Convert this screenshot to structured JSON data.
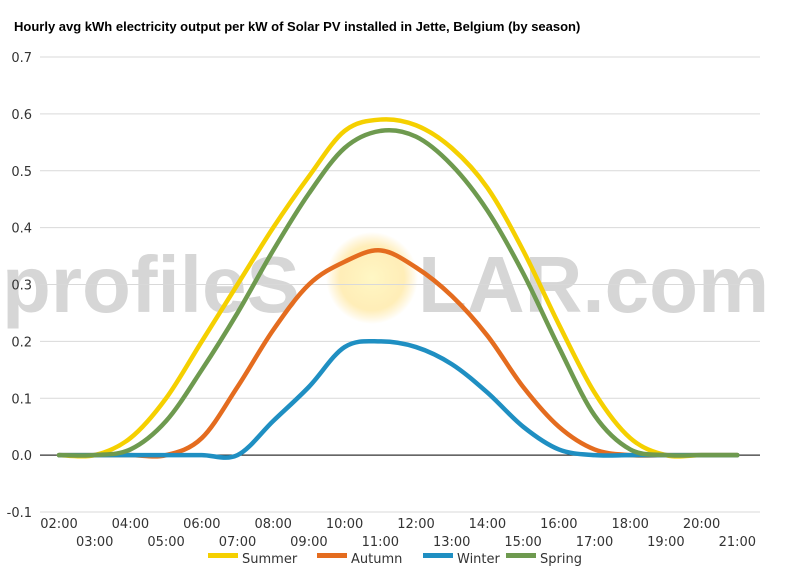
{
  "chart_data": {
    "type": "line",
    "title": "Hourly avg kWh electricity output per kW of Solar PV installed in Jette, Belgium (by season)",
    "xlabel": "",
    "ylabel": "",
    "x": [
      "02:00",
      "03:00",
      "04:00",
      "05:00",
      "06:00",
      "07:00",
      "08:00",
      "09:00",
      "10:00",
      "11:00",
      "12:00",
      "13:00",
      "14:00",
      "15:00",
      "16:00",
      "17:00",
      "18:00",
      "19:00",
      "20:00",
      "21:00"
    ],
    "ylim": [
      -0.1,
      0.7
    ],
    "yticks": [
      "0.7",
      "0.6",
      "0.5",
      "0.4",
      "0.3",
      "0.2",
      "0.1",
      "0.0",
      "-0.1"
    ],
    "grid": true,
    "legend": "bottom",
    "series": [
      {
        "name": "Summer",
        "color": "#f5d000",
        "values": [
          0.0,
          0.0,
          0.03,
          0.1,
          0.2,
          0.3,
          0.4,
          0.49,
          0.57,
          0.59,
          0.58,
          0.54,
          0.47,
          0.36,
          0.23,
          0.11,
          0.03,
          0.0,
          0.0,
          0.0
        ]
      },
      {
        "name": "Autumn",
        "color": "#e46c1f",
        "values": [
          0.0,
          0.0,
          0.0,
          0.0,
          0.03,
          0.12,
          0.22,
          0.3,
          0.34,
          0.36,
          0.33,
          0.28,
          0.21,
          0.12,
          0.05,
          0.01,
          0.0,
          0.0,
          0.0,
          0.0
        ]
      },
      {
        "name": "Winter",
        "color": "#1f8fc2",
        "values": [
          0.0,
          0.0,
          0.0,
          0.0,
          0.0,
          0.0,
          0.06,
          0.12,
          0.19,
          0.2,
          0.19,
          0.16,
          0.11,
          0.05,
          0.01,
          0.0,
          0.0,
          0.0,
          0.0,
          0.0
        ]
      },
      {
        "name": "Spring",
        "color": "#6e9a4f",
        "values": [
          0.0,
          0.0,
          0.01,
          0.06,
          0.15,
          0.25,
          0.36,
          0.46,
          0.54,
          0.57,
          0.56,
          0.51,
          0.43,
          0.32,
          0.19,
          0.07,
          0.01,
          0.0,
          0.0,
          0.0
        ]
      }
    ]
  },
  "watermark": {
    "text_left": "profileS",
    "text_right": "LAR.com",
    "sun_icon": "sun-icon"
  }
}
